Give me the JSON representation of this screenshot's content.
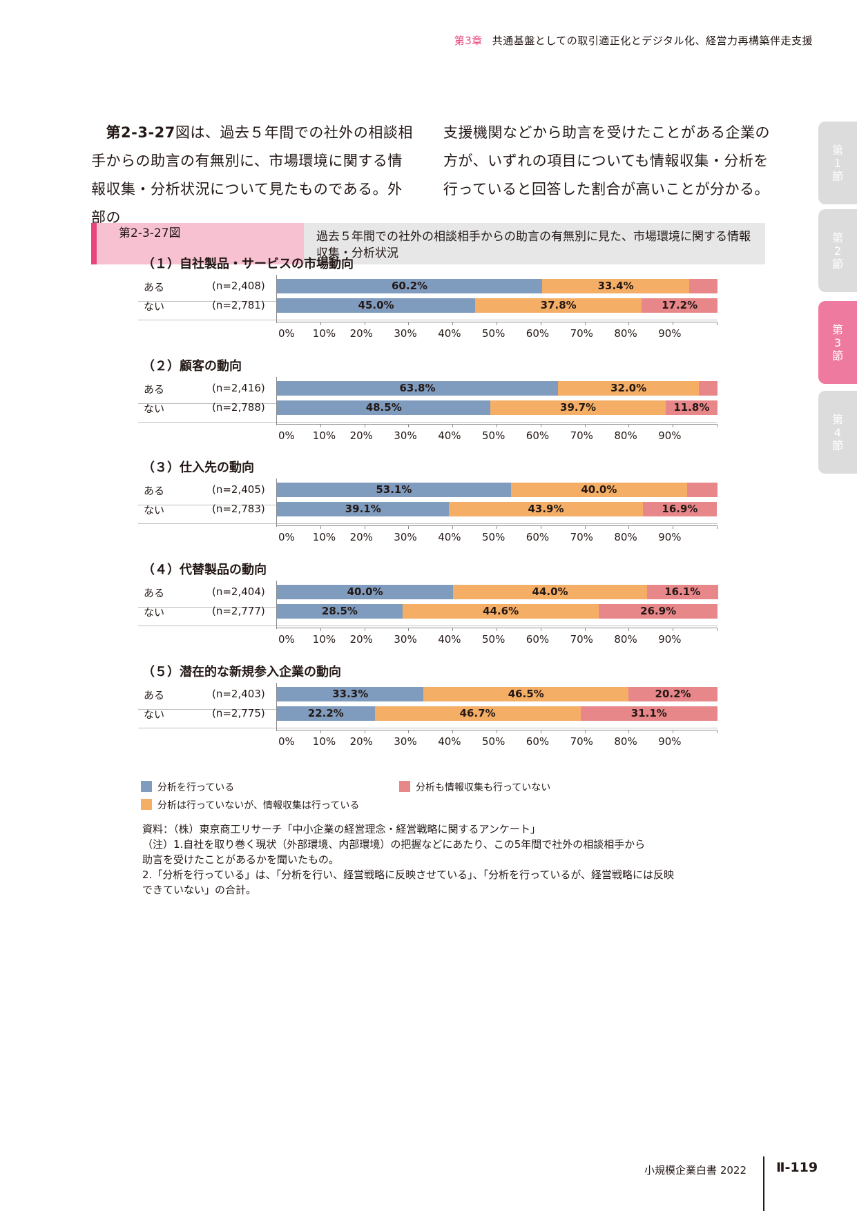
{
  "header": {
    "chapter": "第3章",
    "title": "共通基盤としての取引適正化とデジタル化、経営力再構築伴走支援"
  },
  "body": {
    "left": {
      "ref": "第2-3-27",
      "rest": "図は、過去５年間での社外の相談相手からの助言の有無別に、市場環境に関する情報収集・分析状況について見たものである。外部の"
    },
    "right": "支援機関などから助言を受けたことがある企業の方が、いずれの項目についても情報収集・分析を行っていると回答した割合が高いことが分かる。"
  },
  "side_tabs": [
    {
      "label": "第1節",
      "active": false
    },
    {
      "label": "第2節",
      "active": false
    },
    {
      "label": "第3節",
      "active": true
    },
    {
      "label": "第4節",
      "active": false
    }
  ],
  "figure": {
    "number": "第2-3-27図",
    "title": "過去５年間での社外の相談相手からの助言の有無別に見た、市場環境に関する情報収集・分析状況"
  },
  "chart_data": [
    {
      "type": "bar",
      "stacked": true,
      "orientation": "horizontal",
      "title": "（１）自社製品・サービスの市場動向",
      "categories": [
        "ある",
        "ない"
      ],
      "n": [
        "(n=2,408)",
        "(n=2,781)"
      ],
      "series": [
        {
          "name": "分析を行っている",
          "values": [
            60.2,
            45.0
          ]
        },
        {
          "name": "分析は行っていないが、情報収集は行っている",
          "values": [
            33.4,
            37.8
          ]
        },
        {
          "name": "分析も情報収集も行っていない",
          "values": [
            6.4,
            17.2
          ]
        }
      ],
      "labels": [
        [
          "60.2%",
          "33.4%",
          ""
        ],
        [
          "45.0%",
          "37.8%",
          "17.2%"
        ]
      ],
      "xlim": [
        0,
        100
      ],
      "xticks": [
        "0%",
        "10%",
        "20%",
        "30%",
        "40%",
        "50%",
        "60%",
        "70%",
        "80%",
        "90%"
      ]
    },
    {
      "type": "bar",
      "stacked": true,
      "orientation": "horizontal",
      "title": "（２）顧客の動向",
      "categories": [
        "ある",
        "ない"
      ],
      "n": [
        "(n=2,416)",
        "(n=2,788)"
      ],
      "series": [
        {
          "name": "分析を行っている",
          "values": [
            63.8,
            48.5
          ]
        },
        {
          "name": "分析は行っていないが、情報収集は行っている",
          "values": [
            32.0,
            39.7
          ]
        },
        {
          "name": "分析も情報収集も行っていない",
          "values": [
            4.2,
            11.8
          ]
        }
      ],
      "labels": [
        [
          "63.8%",
          "32.0%",
          ""
        ],
        [
          "48.5%",
          "39.7%",
          "11.8%"
        ]
      ],
      "xlim": [
        0,
        100
      ],
      "xticks": [
        "0%",
        "10%",
        "20%",
        "30%",
        "40%",
        "50%",
        "60%",
        "70%",
        "80%",
        "90%"
      ]
    },
    {
      "type": "bar",
      "stacked": true,
      "orientation": "horizontal",
      "title": "（３）仕入先の動向",
      "categories": [
        "ある",
        "ない"
      ],
      "n": [
        "(n=2,405)",
        "(n=2,783)"
      ],
      "series": [
        {
          "name": "分析を行っている",
          "values": [
            53.1,
            39.1
          ]
        },
        {
          "name": "分析は行っていないが、情報収集は行っている",
          "values": [
            40.0,
            43.9
          ]
        },
        {
          "name": "分析も情報収集も行っていない",
          "values": [
            6.9,
            16.9
          ]
        }
      ],
      "labels": [
        [
          "53.1%",
          "40.0%",
          ""
        ],
        [
          "39.1%",
          "43.9%",
          "16.9%"
        ]
      ],
      "xlim": [
        0,
        100
      ],
      "xticks": [
        "0%",
        "10%",
        "20%",
        "30%",
        "40%",
        "50%",
        "60%",
        "70%",
        "80%",
        "90%"
      ]
    },
    {
      "type": "bar",
      "stacked": true,
      "orientation": "horizontal",
      "title": "（４）代替製品の動向",
      "categories": [
        "ある",
        "ない"
      ],
      "n": [
        "(n=2,404)",
        "(n=2,777)"
      ],
      "series": [
        {
          "name": "分析を行っている",
          "values": [
            40.0,
            28.5
          ]
        },
        {
          "name": "分析は行っていないが、情報収集は行っている",
          "values": [
            44.0,
            44.6
          ]
        },
        {
          "name": "分析も情報収集も行っていない",
          "values": [
            16.1,
            26.9
          ]
        }
      ],
      "labels": [
        [
          "40.0%",
          "44.0%",
          "16.1%"
        ],
        [
          "28.5%",
          "44.6%",
          "26.9%"
        ]
      ],
      "xlim": [
        0,
        100
      ],
      "xticks": [
        "0%",
        "10%",
        "20%",
        "30%",
        "40%",
        "50%",
        "60%",
        "70%",
        "80%",
        "90%"
      ]
    },
    {
      "type": "bar",
      "stacked": true,
      "orientation": "horizontal",
      "title": "（５）潜在的な新規参入企業の動向",
      "categories": [
        "ある",
        "ない"
      ],
      "n": [
        "(n=2,403)",
        "(n=2,775)"
      ],
      "series": [
        {
          "name": "分析を行っている",
          "values": [
            33.3,
            22.2
          ]
        },
        {
          "name": "分析は行っていないが、情報収集は行っている",
          "values": [
            46.5,
            46.7
          ]
        },
        {
          "name": "分析も情報収集も行っていない",
          "values": [
            20.2,
            31.1
          ]
        }
      ],
      "labels": [
        [
          "33.3%",
          "46.5%",
          "20.2%"
        ],
        [
          "22.2%",
          "46.7%",
          "31.1%"
        ]
      ],
      "xlim": [
        0,
        100
      ],
      "xticks": [
        "0%",
        "10%",
        "20%",
        "30%",
        "40%",
        "50%",
        "60%",
        "70%",
        "80%",
        "90%"
      ]
    }
  ],
  "colors": [
    "#7f9cbf",
    "#f5ae66",
    "#e8878a"
  ],
  "legend": [
    "分析を行っている",
    "分析は行っていないが、情報収集は行っている",
    "分析も情報収集も行っていない"
  ],
  "notes": [
    "資料：（株）東京商工リサーチ「中小企業の経営理念・経営戦略に関するアンケート」",
    "（注）1.自社を取り巻く現状（外部環境、内部環境）の把握などにあたり、この5年間で社外の相談相手から",
    "助言を受けたことがあるかを聞いたもの。",
    "2.「分析を行っている」は、「分析を行い、経営戦略に反映させている」、「分析を行っているが、経営戦略には反映",
    "できていない」の合計。"
  ],
  "footer": {
    "title": "小規模企業白書 2022",
    "page": "Ⅱ-119"
  }
}
